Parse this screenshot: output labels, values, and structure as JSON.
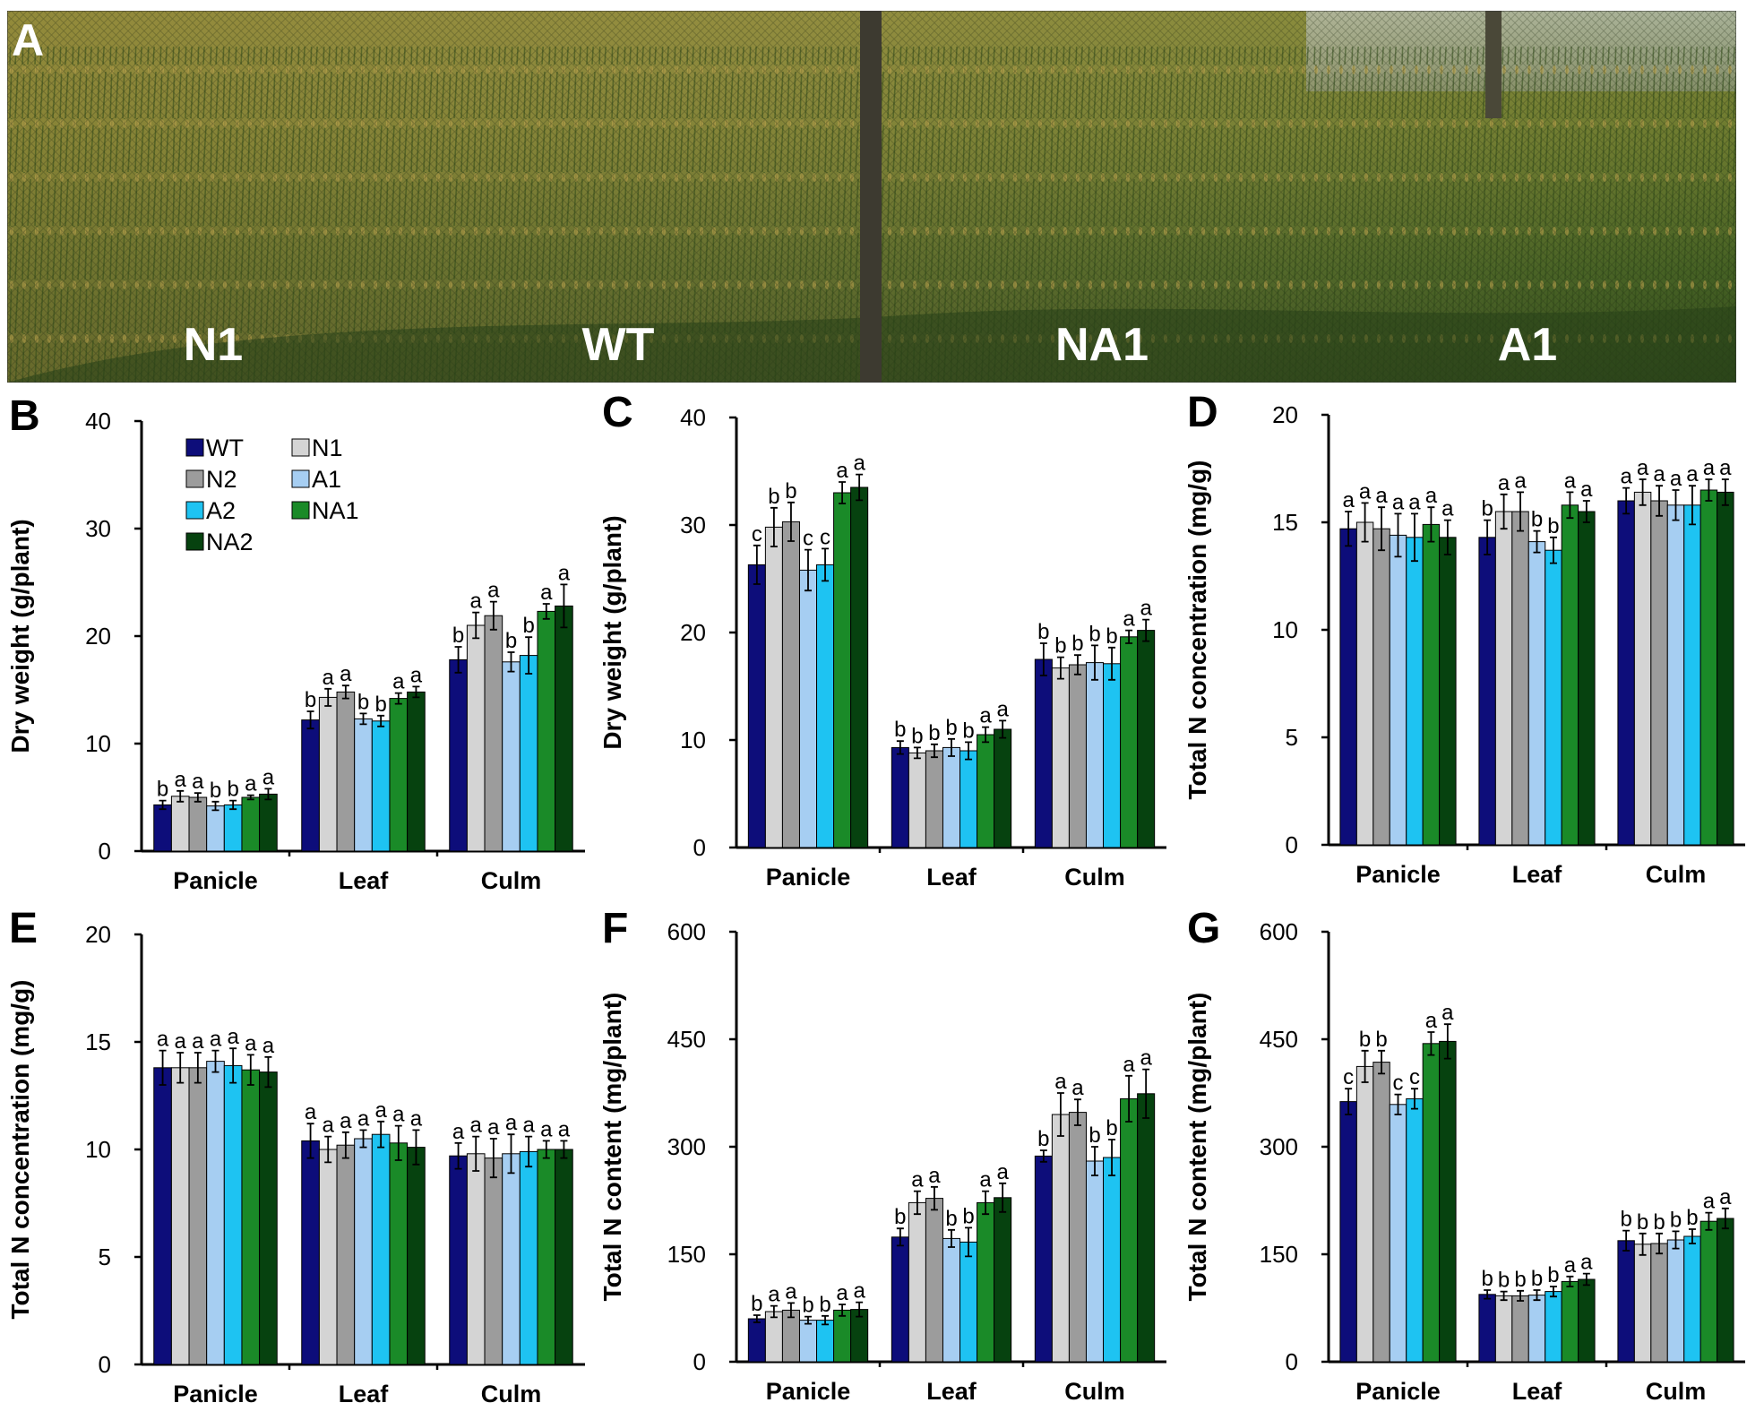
{
  "photo": {
    "panel_label": "A",
    "labels": [
      "N1",
      "WT",
      "NA1",
      "A1"
    ]
  },
  "legend": [
    "WT",
    "N1",
    "N2",
    "A1",
    "A2",
    "NA1",
    "NA2"
  ],
  "colors": {
    "WT": "#0d0d7a",
    "N1": "#d4d4d4",
    "N2": "#9c9c9c",
    "A1": "#a6cef2",
    "A2": "#1ec3f2",
    "NA1": "#1a8a28",
    "NA2": "#06420f"
  },
  "chart_data": [
    {
      "panel": "B",
      "type": "bar",
      "categories": [
        "Panicle",
        "Leaf",
        "Culm"
      ],
      "ylabel": "Dry weight (g/plant)",
      "ylim": [
        0,
        40
      ],
      "yticks": [
        0,
        10,
        20,
        30,
        40
      ],
      "legend_shown": true,
      "series": [
        {
          "name": "WT",
          "values": [
            4.3,
            12.2,
            17.8
          ],
          "errors": [
            0.4,
            0.8,
            1.2
          ],
          "letters": [
            "b",
            "b",
            "b"
          ]
        },
        {
          "name": "N1",
          "values": [
            5.1,
            14.3,
            21.0
          ],
          "errors": [
            0.5,
            0.8,
            1.2
          ],
          "letters": [
            "a",
            "a",
            "a"
          ]
        },
        {
          "name": "N2",
          "values": [
            5.0,
            14.8,
            21.9
          ],
          "errors": [
            0.4,
            0.6,
            1.3
          ],
          "letters": [
            "a",
            "a",
            "a"
          ]
        },
        {
          "name": "A1",
          "values": [
            4.2,
            12.3,
            17.6
          ],
          "errors": [
            0.4,
            0.5,
            0.9
          ],
          "letters": [
            "b",
            "b",
            "b"
          ]
        },
        {
          "name": "A2",
          "values": [
            4.3,
            12.1,
            18.2
          ],
          "errors": [
            0.4,
            0.5,
            1.7
          ],
          "letters": [
            "b",
            "b",
            "b"
          ]
        },
        {
          "name": "NA1",
          "values": [
            5.0,
            14.2,
            22.3
          ],
          "errors": [
            0.2,
            0.5,
            0.7
          ],
          "letters": [
            "a",
            "a",
            "a"
          ]
        },
        {
          "name": "NA2",
          "values": [
            5.3,
            14.8,
            22.8
          ],
          "errors": [
            0.5,
            0.5,
            2.0
          ],
          "letters": [
            "a",
            "a",
            "a"
          ]
        }
      ]
    },
    {
      "panel": "C",
      "type": "bar",
      "categories": [
        "Panicle",
        "Leaf",
        "Culm"
      ],
      "ylabel": "Dry weight (g/plant)",
      "ylim": [
        0,
        40
      ],
      "yticks": [
        0,
        10,
        20,
        30,
        40
      ],
      "legend_shown": false,
      "series": [
        {
          "name": "WT",
          "values": [
            26.3,
            9.3,
            17.5
          ],
          "errors": [
            1.8,
            0.6,
            1.5
          ],
          "letters": [
            "c",
            "b",
            "b"
          ]
        },
        {
          "name": "N1",
          "values": [
            29.8,
            8.8,
            16.7
          ],
          "errors": [
            1.8,
            0.5,
            1.0
          ],
          "letters": [
            "b",
            "b",
            "b"
          ]
        },
        {
          "name": "N2",
          "values": [
            30.3,
            9.0,
            17.0
          ],
          "errors": [
            1.8,
            0.6,
            0.9
          ],
          "letters": [
            "b",
            "b",
            "b"
          ]
        },
        {
          "name": "A1",
          "values": [
            25.8,
            9.3,
            17.2
          ],
          "errors": [
            1.9,
            0.8,
            1.6
          ],
          "letters": [
            "c",
            "b",
            "b"
          ]
        },
        {
          "name": "A2",
          "values": [
            26.3,
            9.0,
            17.1
          ],
          "errors": [
            1.5,
            0.8,
            1.5
          ],
          "letters": [
            "c",
            "b",
            "b"
          ]
        },
        {
          "name": "NA1",
          "values": [
            33.0,
            10.5,
            19.6
          ],
          "errors": [
            1.0,
            0.7,
            0.6
          ],
          "letters": [
            "a",
            "a",
            "a"
          ]
        },
        {
          "name": "NA2",
          "values": [
            33.5,
            11.0,
            20.2
          ],
          "errors": [
            1.2,
            0.8,
            1.0
          ],
          "letters": [
            "a",
            "a",
            "a"
          ]
        }
      ]
    },
    {
      "panel": "D",
      "type": "bar",
      "categories": [
        "Panicle",
        "Leaf",
        "Culm"
      ],
      "ylabel": "Total N concentration (mg/g)",
      "ylim": [
        0,
        20
      ],
      "yticks": [
        0,
        5,
        10,
        15,
        20
      ],
      "legend_shown": false,
      "series": [
        {
          "name": "WT",
          "values": [
            14.7,
            14.3,
            16.0
          ],
          "errors": [
            0.8,
            0.8,
            0.6
          ],
          "letters": [
            "a",
            "b",
            "a"
          ]
        },
        {
          "name": "N1",
          "values": [
            15.0,
            15.5,
            16.4
          ],
          "errors": [
            0.9,
            0.8,
            0.6
          ],
          "letters": [
            "a",
            "a",
            "a"
          ]
        },
        {
          "name": "N2",
          "values": [
            14.7,
            15.5,
            16.0
          ],
          "errors": [
            1.0,
            0.9,
            0.7
          ],
          "letters": [
            "a",
            "a",
            "a"
          ]
        },
        {
          "name": "A1",
          "values": [
            14.4,
            14.1,
            15.8
          ],
          "errors": [
            1.0,
            0.5,
            0.7
          ],
          "letters": [
            "a",
            "b",
            "a"
          ]
        },
        {
          "name": "A2",
          "values": [
            14.3,
            13.7,
            15.8
          ],
          "errors": [
            1.1,
            0.6,
            0.9
          ],
          "letters": [
            "a",
            "b",
            "a"
          ]
        },
        {
          "name": "NA1",
          "values": [
            14.9,
            15.8,
            16.5
          ],
          "errors": [
            0.8,
            0.6,
            0.5
          ],
          "letters": [
            "a",
            "a",
            "a"
          ]
        },
        {
          "name": "NA2",
          "values": [
            14.3,
            15.5,
            16.4
          ],
          "errors": [
            0.8,
            0.5,
            0.6
          ],
          "letters": [
            "a",
            "a",
            "a"
          ]
        }
      ]
    },
    {
      "panel": "E",
      "type": "bar",
      "categories": [
        "Panicle",
        "Leaf",
        "Culm"
      ],
      "ylabel": "Total N concentration (mg/g)",
      "ylim": [
        0,
        20
      ],
      "yticks": [
        0,
        5,
        10,
        15,
        20
      ],
      "legend_shown": false,
      "series": [
        {
          "name": "WT",
          "values": [
            13.8,
            10.4,
            9.7
          ],
          "errors": [
            0.8,
            0.8,
            0.6
          ],
          "letters": [
            "a",
            "a",
            "a"
          ]
        },
        {
          "name": "N1",
          "values": [
            13.8,
            10.0,
            9.8
          ],
          "errors": [
            0.7,
            0.6,
            0.8
          ],
          "letters": [
            "a",
            "a",
            "a"
          ]
        },
        {
          "name": "N2",
          "values": [
            13.8,
            10.2,
            9.6
          ],
          "errors": [
            0.7,
            0.6,
            0.9
          ],
          "letters": [
            "a",
            "a",
            "a"
          ]
        },
        {
          "name": "A1",
          "values": [
            14.1,
            10.5,
            9.8
          ],
          "errors": [
            0.5,
            0.4,
            0.9
          ],
          "letters": [
            "a",
            "a",
            "a"
          ]
        },
        {
          "name": "A2",
          "values": [
            13.9,
            10.7,
            9.9
          ],
          "errors": [
            0.8,
            0.6,
            0.7
          ],
          "letters": [
            "a",
            "a",
            "a"
          ]
        },
        {
          "name": "NA1",
          "values": [
            13.7,
            10.3,
            10.0
          ],
          "errors": [
            0.7,
            0.8,
            0.4
          ],
          "letters": [
            "a",
            "a",
            "a"
          ]
        },
        {
          "name": "NA2",
          "values": [
            13.6,
            10.1,
            10.0
          ],
          "errors": [
            0.7,
            0.8,
            0.4
          ],
          "letters": [
            "a",
            "a",
            "a"
          ]
        }
      ]
    },
    {
      "panel": "F",
      "type": "bar",
      "categories": [
        "Panicle",
        "Leaf",
        "Culm"
      ],
      "ylabel": "Total N content (mg/plant)",
      "ylim": [
        0,
        600
      ],
      "yticks": [
        0,
        150,
        300,
        450,
        600
      ],
      "legend_shown": false,
      "series": [
        {
          "name": "WT",
          "values": [
            60,
            174,
            287
          ],
          "errors": [
            5,
            12,
            8
          ],
          "letters": [
            "b",
            "b",
            "b"
          ]
        },
        {
          "name": "N1",
          "values": [
            70,
            222,
            345
          ],
          "errors": [
            8,
            16,
            30
          ],
          "letters": [
            "a",
            "a",
            "a"
          ]
        },
        {
          "name": "N2",
          "values": [
            72,
            228,
            348
          ],
          "errors": [
            10,
            16,
            18
          ],
          "letters": [
            "a",
            "a",
            "a"
          ]
        },
        {
          "name": "A1",
          "values": [
            58,
            172,
            280
          ],
          "errors": [
            5,
            12,
            20
          ],
          "letters": [
            "b",
            "b",
            "b"
          ]
        },
        {
          "name": "A2",
          "values": [
            58,
            167,
            285
          ],
          "errors": [
            6,
            20,
            25
          ],
          "letters": [
            "b",
            "b",
            "b"
          ]
        },
        {
          "name": "NA1",
          "values": [
            72,
            222,
            367
          ],
          "errors": [
            8,
            16,
            32
          ],
          "letters": [
            "a",
            "a",
            "a"
          ]
        },
        {
          "name": "NA2",
          "values": [
            73,
            229,
            374
          ],
          "errors": [
            10,
            20,
            34
          ],
          "letters": [
            "a",
            "a",
            "a"
          ]
        }
      ]
    },
    {
      "panel": "G",
      "type": "bar",
      "categories": [
        "Panicle",
        "Leaf",
        "Culm"
      ],
      "ylabel": "Total N content (mg/plant)",
      "ylim": [
        0,
        600
      ],
      "yticks": [
        0,
        150,
        300,
        450,
        600
      ],
      "legend_shown": false,
      "series": [
        {
          "name": "WT",
          "values": [
            363,
            94,
            169
          ],
          "errors": [
            18,
            6,
            14
          ],
          "letters": [
            "c",
            "b",
            "b"
          ]
        },
        {
          "name": "N1",
          "values": [
            412,
            92,
            164
          ],
          "errors": [
            22,
            6,
            15
          ],
          "letters": [
            "b",
            "b",
            "b"
          ]
        },
        {
          "name": "N2",
          "values": [
            418,
            92,
            165
          ],
          "errors": [
            16,
            7,
            14
          ],
          "letters": [
            "b",
            "b",
            "b"
          ]
        },
        {
          "name": "A1",
          "values": [
            359,
            93,
            170
          ],
          "errors": [
            14,
            7,
            12
          ],
          "letters": [
            "c",
            "b",
            "b"
          ]
        },
        {
          "name": "A2",
          "values": [
            367,
            98,
            175
          ],
          "errors": [
            14,
            7,
            10
          ],
          "letters": [
            "c",
            "b",
            "b"
          ]
        },
        {
          "name": "NA1",
          "values": [
            444,
            112,
            196
          ],
          "errors": [
            16,
            7,
            12
          ],
          "letters": [
            "a",
            "a",
            "a"
          ]
        },
        {
          "name": "NA2",
          "values": [
            447,
            115,
            200
          ],
          "errors": [
            24,
            8,
            14
          ],
          "letters": [
            "a",
            "a",
            "a"
          ]
        }
      ]
    }
  ]
}
